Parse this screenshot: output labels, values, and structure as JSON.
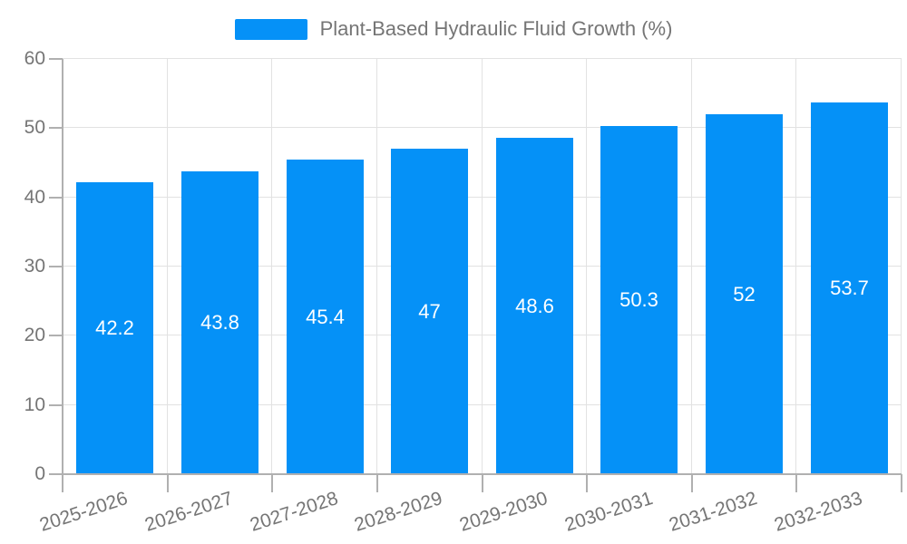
{
  "legend": {
    "items": [
      {
        "label": "Plant-Based Hydraulic Fluid Growth (%)",
        "color": "#0591F7"
      }
    ]
  },
  "chart_data": {
    "type": "bar",
    "title": "Plant-Based Hydraulic Fluid Growth (%)",
    "categories": [
      "2025-2026",
      "2026-2027",
      "2027-2028",
      "2028-2029",
      "2029-2030",
      "2030-2031",
      "2031-2032",
      "2032-2033"
    ],
    "series": [
      {
        "name": "Plant-Based Hydraulic Fluid Growth (%)",
        "values": [
          42.2,
          43.8,
          45.4,
          47,
          48.6,
          50.3,
          52,
          53.7
        ]
      }
    ],
    "value_labels": [
      "42.2",
      "43.8",
      "45.4",
      "47",
      "48.6",
      "50.3",
      "52",
      "53.7"
    ],
    "xlabel": "",
    "ylabel": "",
    "ylim": [
      0,
      60
    ],
    "yticks": [
      0,
      10,
      20,
      30,
      40,
      50,
      60
    ],
    "grid": true,
    "legend_position": "top-center",
    "x_tick_rotation_deg": -18,
    "colors": {
      "bar": "#0591F7",
      "bar_value_label": "#FFFFFF",
      "axis_line": "#B0B0B0",
      "grid_line": "#E2E2E2",
      "tick_label": "#757575",
      "legend_text": "#757575",
      "background": "#FFFFFF"
    }
  }
}
